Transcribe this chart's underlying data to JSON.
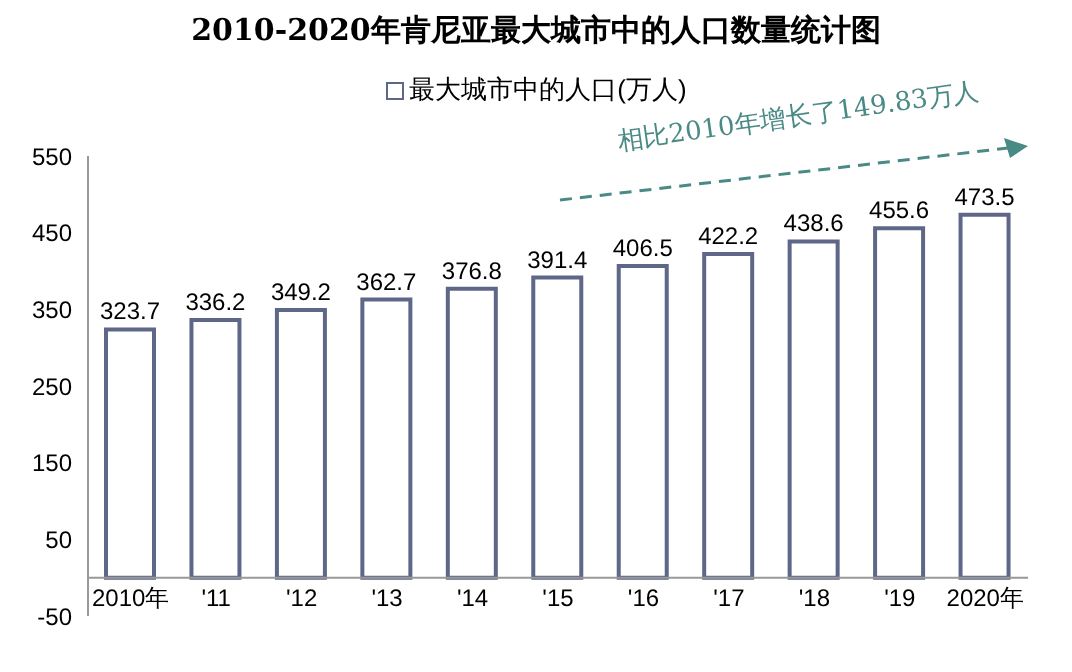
{
  "chart_data": {
    "type": "bar",
    "title": "2010-2020年肯尼亚最大城市中的人口数量统计图",
    "categories": [
      "2010年",
      "'11",
      "'12",
      "'13",
      "'14",
      "'15",
      "'16",
      "'17",
      "'18",
      "'19",
      "2020年"
    ],
    "series": [
      {
        "name": "最大城市中的人口(万人)",
        "color": "#5f6788",
        "values": [
          323.7,
          336.2,
          349.2,
          362.7,
          376.8,
          391.4,
          406.5,
          422.2,
          438.6,
          455.6,
          473.5
        ]
      }
    ],
    "ylim": [
      -50,
      550
    ],
    "yticks": [
      -50,
      50,
      150,
      250,
      350,
      450,
      550
    ],
    "legend": "top",
    "data_labels": true,
    "annotations": [
      "相比2010年增长了149.83万人"
    ]
  }
}
